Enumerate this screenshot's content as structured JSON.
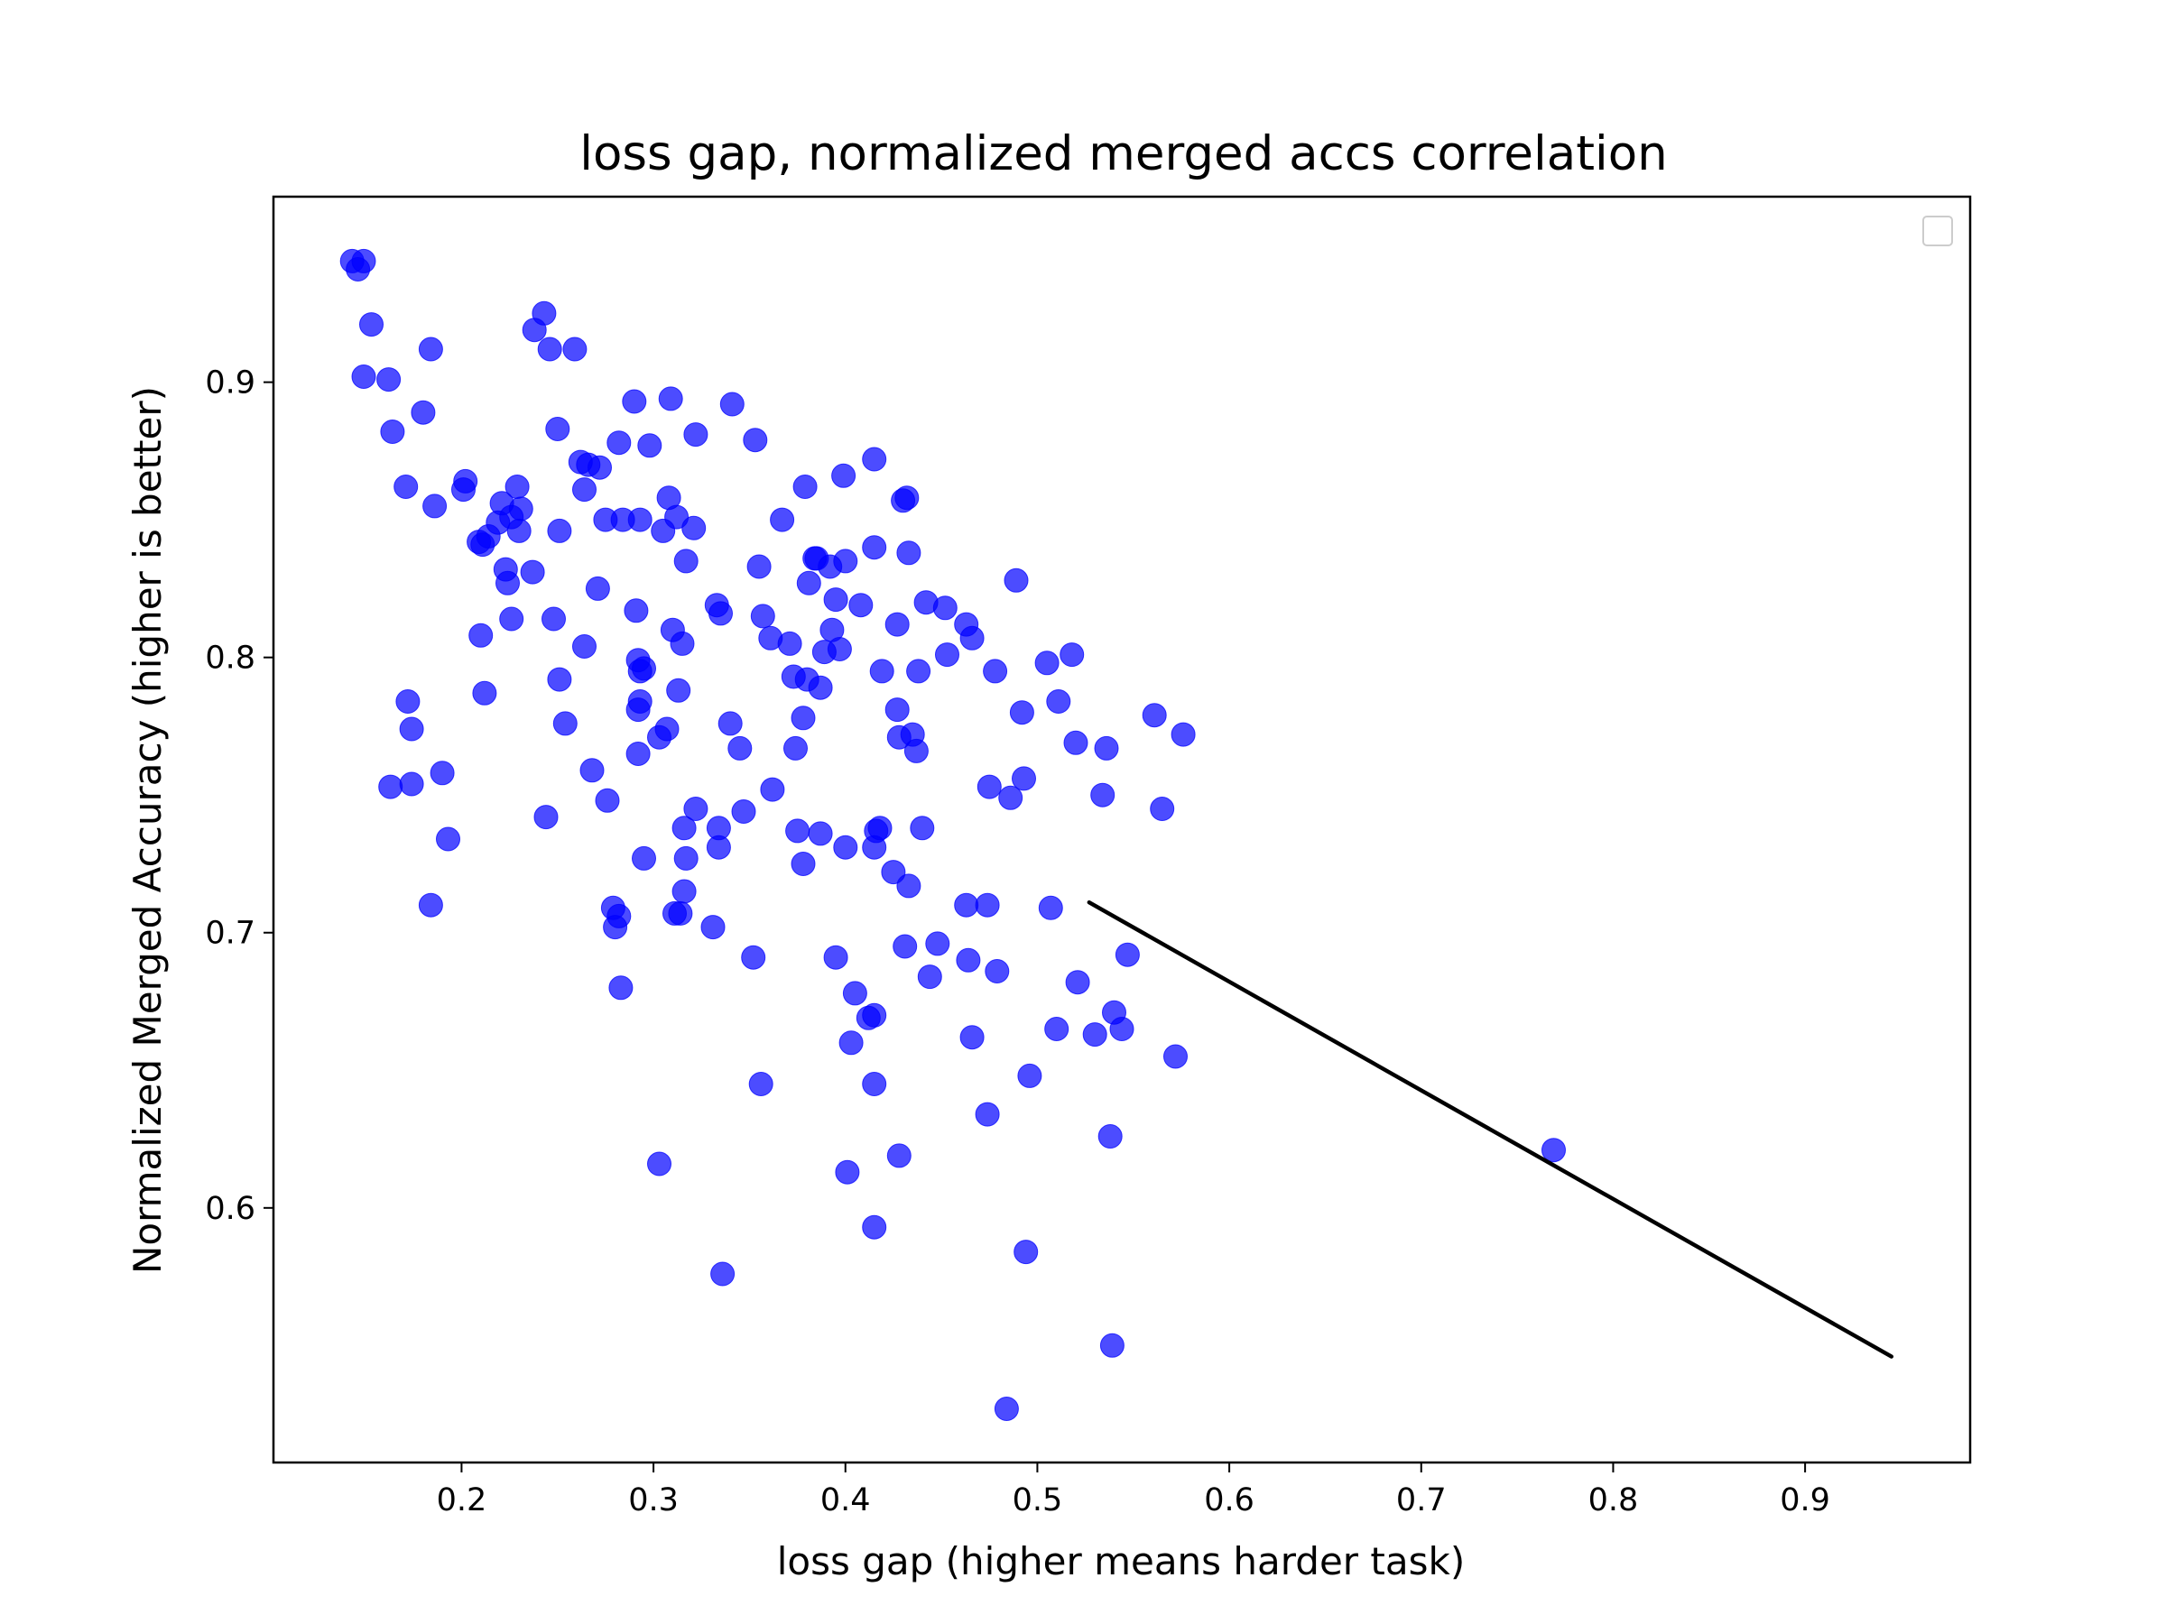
{
  "chart_data": {
    "type": "scatter",
    "title": "loss gap, normalized merged accs correlation",
    "xlabel": "loss gap (higher means harder task)",
    "ylabel": "Normalized Merged Accuracy (higher is better)",
    "xlim": [
      0.102,
      0.986
    ],
    "ylim": [
      0.5075,
      0.9674
    ],
    "x_ticks": [
      0.2,
      0.3,
      0.4,
      0.5,
      0.6,
      0.7,
      0.8,
      0.9
    ],
    "y_ticks": [
      0.6,
      0.7,
      0.8,
      0.9
    ],
    "x_tick_labels": [
      "0.2",
      "0.3",
      "0.4",
      "0.5",
      "0.6",
      "0.7",
      "0.8",
      "0.9"
    ],
    "y_tick_labels": [
      "0.6",
      "0.7",
      "0.8",
      "0.9"
    ],
    "grid": false,
    "legend": "top-right, empty",
    "point_color": "#0000ff",
    "fit_line_color": "#000000",
    "fit_line": {
      "x": [
        0.527,
        0.945
      ],
      "y": [
        0.711,
        0.546
      ]
    },
    "series": [
      {
        "points": [
          [
            0.143,
            0.944
          ],
          [
            0.146,
            0.941
          ],
          [
            0.149,
            0.944
          ],
          [
            0.153,
            0.921
          ],
          [
            0.149,
            0.902
          ],
          [
            0.162,
            0.901
          ],
          [
            0.164,
            0.882
          ],
          [
            0.171,
            0.862
          ],
          [
            0.18,
            0.889
          ],
          [
            0.184,
            0.912
          ],
          [
            0.186,
            0.855
          ],
          [
            0.201,
            0.861
          ],
          [
            0.202,
            0.864
          ],
          [
            0.209,
            0.842
          ],
          [
            0.211,
            0.841
          ],
          [
            0.214,
            0.844
          ],
          [
            0.219,
            0.849
          ],
          [
            0.221,
            0.856
          ],
          [
            0.223,
            0.832
          ],
          [
            0.224,
            0.827
          ],
          [
            0.226,
            0.851
          ],
          [
            0.229,
            0.862
          ],
          [
            0.23,
            0.846
          ],
          [
            0.231,
            0.854
          ],
          [
            0.237,
            0.831
          ],
          [
            0.238,
            0.919
          ],
          [
            0.243,
            0.925
          ],
          [
            0.246,
            0.912
          ],
          [
            0.25,
            0.883
          ],
          [
            0.251,
            0.846
          ],
          [
            0.259,
            0.912
          ],
          [
            0.262,
            0.871
          ],
          [
            0.264,
            0.861
          ],
          [
            0.266,
            0.87
          ],
          [
            0.272,
            0.869
          ],
          [
            0.275,
            0.85
          ],
          [
            0.282,
            0.878
          ],
          [
            0.284,
            0.85
          ],
          [
            0.29,
            0.893
          ],
          [
            0.293,
            0.85
          ],
          [
            0.298,
            0.877
          ],
          [
            0.305,
            0.846
          ],
          [
            0.308,
            0.858
          ],
          [
            0.309,
            0.894
          ],
          [
            0.312,
            0.851
          ],
          [
            0.321,
            0.847
          ],
          [
            0.322,
            0.881
          ],
          [
            0.341,
            0.892
          ],
          [
            0.353,
            0.879
          ],
          [
            0.21,
            0.808
          ],
          [
            0.212,
            0.787
          ],
          [
            0.226,
            0.814
          ],
          [
            0.248,
            0.814
          ],
          [
            0.251,
            0.792
          ],
          [
            0.254,
            0.776
          ],
          [
            0.264,
            0.804
          ],
          [
            0.271,
            0.825
          ],
          [
            0.291,
            0.817
          ],
          [
            0.292,
            0.799
          ],
          [
            0.292,
            0.781
          ],
          [
            0.293,
            0.784
          ],
          [
            0.293,
            0.795
          ],
          [
            0.295,
            0.796
          ],
          [
            0.303,
            0.771
          ],
          [
            0.307,
            0.774
          ],
          [
            0.31,
            0.81
          ],
          [
            0.313,
            0.788
          ],
          [
            0.315,
            0.805
          ],
          [
            0.317,
            0.835
          ],
          [
            0.333,
            0.819
          ],
          [
            0.335,
            0.816
          ],
          [
            0.34,
            0.776
          ],
          [
            0.345,
            0.767
          ],
          [
            0.355,
            0.833
          ],
          [
            0.357,
            0.815
          ],
          [
            0.361,
            0.807
          ],
          [
            0.367,
            0.85
          ],
          [
            0.371,
            0.805
          ],
          [
            0.373,
            0.793
          ],
          [
            0.374,
            0.767
          ],
          [
            0.378,
            0.778
          ],
          [
            0.379,
            0.862
          ],
          [
            0.38,
            0.792
          ],
          [
            0.381,
            0.827
          ],
          [
            0.384,
            0.836
          ],
          [
            0.385,
            0.836
          ],
          [
            0.387,
            0.789
          ],
          [
            0.389,
            0.802
          ],
          [
            0.392,
            0.833
          ],
          [
            0.393,
            0.81
          ],
          [
            0.395,
            0.821
          ],
          [
            0.397,
            0.803
          ],
          [
            0.399,
            0.866
          ],
          [
            0.4,
            0.835
          ],
          [
            0.408,
            0.819
          ],
          [
            0.415,
            0.872
          ],
          [
            0.415,
            0.84
          ],
          [
            0.419,
            0.795
          ],
          [
            0.427,
            0.812
          ],
          [
            0.427,
            0.781
          ],
          [
            0.428,
            0.771
          ],
          [
            0.43,
            0.857
          ],
          [
            0.432,
            0.858
          ],
          [
            0.433,
            0.838
          ],
          [
            0.435,
            0.772
          ],
          [
            0.437,
            0.766
          ],
          [
            0.438,
            0.795
          ],
          [
            0.442,
            0.82
          ],
          [
            0.452,
            0.818
          ],
          [
            0.453,
            0.801
          ],
          [
            0.463,
            0.812
          ],
          [
            0.466,
            0.807
          ],
          [
            0.478,
            0.795
          ],
          [
            0.489,
            0.828
          ],
          [
            0.492,
            0.78
          ],
          [
            0.505,
            0.798
          ],
          [
            0.511,
            0.784
          ],
          [
            0.518,
            0.801
          ],
          [
            0.52,
            0.769
          ],
          [
            0.536,
            0.767
          ],
          [
            0.561,
            0.779
          ],
          [
            0.576,
            0.772
          ],
          [
            0.163,
            0.753
          ],
          [
            0.172,
            0.784
          ],
          [
            0.174,
            0.774
          ],
          [
            0.174,
            0.754
          ],
          [
            0.184,
            0.71
          ],
          [
            0.19,
            0.758
          ],
          [
            0.193,
            0.734
          ],
          [
            0.244,
            0.742
          ],
          [
            0.268,
            0.759
          ],
          [
            0.276,
            0.748
          ],
          [
            0.279,
            0.709
          ],
          [
            0.28,
            0.702
          ],
          [
            0.282,
            0.706
          ],
          [
            0.283,
            0.68
          ],
          [
            0.292,
            0.765
          ],
          [
            0.295,
            0.727
          ],
          [
            0.311,
            0.707
          ],
          [
            0.314,
            0.707
          ],
          [
            0.316,
            0.715
          ],
          [
            0.316,
            0.738
          ],
          [
            0.317,
            0.727
          ],
          [
            0.322,
            0.745
          ],
          [
            0.331,
            0.702
          ],
          [
            0.334,
            0.738
          ],
          [
            0.334,
            0.731
          ],
          [
            0.347,
            0.744
          ],
          [
            0.352,
            0.691
          ],
          [
            0.362,
            0.752
          ],
          [
            0.375,
            0.737
          ],
          [
            0.378,
            0.725
          ],
          [
            0.387,
            0.736
          ],
          [
            0.395,
            0.691
          ],
          [
            0.4,
            0.731
          ],
          [
            0.403,
            0.66
          ],
          [
            0.405,
            0.678
          ],
          [
            0.412,
            0.669
          ],
          [
            0.415,
            0.67
          ],
          [
            0.415,
            0.731
          ],
          [
            0.416,
            0.737
          ],
          [
            0.418,
            0.738
          ],
          [
            0.425,
            0.722
          ],
          [
            0.431,
            0.695
          ],
          [
            0.433,
            0.717
          ],
          [
            0.44,
            0.738
          ],
          [
            0.444,
            0.684
          ],
          [
            0.448,
            0.696
          ],
          [
            0.463,
            0.71
          ],
          [
            0.464,
            0.69
          ],
          [
            0.466,
            0.662
          ],
          [
            0.474,
            0.71
          ],
          [
            0.475,
            0.753
          ],
          [
            0.479,
            0.686
          ],
          [
            0.486,
            0.749
          ],
          [
            0.493,
            0.756
          ],
          [
            0.507,
            0.709
          ],
          [
            0.51,
            0.665
          ],
          [
            0.521,
            0.682
          ],
          [
            0.53,
            0.663
          ],
          [
            0.534,
            0.75
          ],
          [
            0.54,
            0.671
          ],
          [
            0.544,
            0.665
          ],
          [
            0.547,
            0.692
          ],
          [
            0.565,
            0.745
          ],
          [
            0.572,
            0.655
          ],
          [
            0.303,
            0.616
          ],
          [
            0.336,
            0.576
          ],
          [
            0.356,
            0.645
          ],
          [
            0.401,
            0.613
          ],
          [
            0.415,
            0.645
          ],
          [
            0.415,
            0.593
          ],
          [
            0.428,
            0.619
          ],
          [
            0.474,
            0.634
          ],
          [
            0.484,
            0.527
          ],
          [
            0.494,
            0.584
          ],
          [
            0.496,
            0.648
          ],
          [
            0.538,
            0.626
          ],
          [
            0.539,
            0.55
          ],
          [
            0.769,
            0.621
          ]
        ]
      }
    ]
  }
}
